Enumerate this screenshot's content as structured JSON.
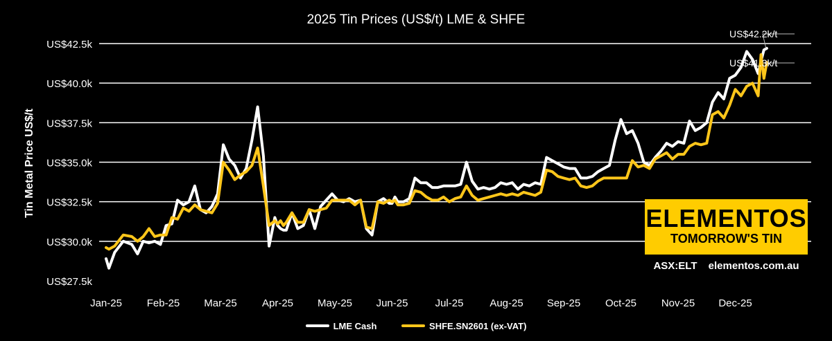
{
  "chart_data": {
    "type": "line",
    "title": "2025 Tin Prices (US$/t) LME & SHFE",
    "xlabel": "",
    "ylabel": "Tin Metal Price US$/t",
    "ylim": [
      27500,
      42500
    ],
    "y_ticks": [
      27500,
      30000,
      32500,
      35000,
      37500,
      40000,
      42500
    ],
    "y_tick_labels": [
      "US$27.5k",
      "US$30.0k",
      "US$32.5k",
      "US$35.0k",
      "US$37.5k",
      "US$40.0k",
      "US$42.5k"
    ],
    "x_tick_labels": [
      "Jan-25",
      "Feb-25",
      "Mar-25",
      "Apr-25",
      "May-25",
      "Jun-25",
      "Jul-25",
      "Aug-25",
      "Sep-25",
      "Oct-25",
      "Nov-25",
      "Dec-25"
    ],
    "xlim": [
      0,
      11.55
    ],
    "grid": true,
    "legend_position": "bottom",
    "series": [
      {
        "name": "LME Cash",
        "color": "#FFFFFF",
        "x": [
          0,
          0.05,
          0.15,
          0.3,
          0.45,
          0.55,
          0.65,
          0.75,
          0.85,
          0.95,
          1.05,
          1.15,
          1.25,
          1.35,
          1.45,
          1.55,
          1.65,
          1.75,
          1.85,
          1.95,
          2.05,
          2.15,
          2.25,
          2.35,
          2.45,
          2.55,
          2.65,
          2.75,
          2.85,
          2.95,
          3.0,
          3.05,
          3.1,
          3.15,
          3.25,
          3.35,
          3.45,
          3.55,
          3.65,
          3.75,
          3.85,
          3.95,
          4.05,
          4.15,
          4.25,
          4.35,
          4.45,
          4.55,
          4.65,
          4.75,
          4.85,
          4.95,
          5.0,
          5.05,
          5.1,
          5.2,
          5.3,
          5.4,
          5.5,
          5.6,
          5.7,
          5.8,
          5.9,
          6.0,
          6.1,
          6.2,
          6.3,
          6.4,
          6.5,
          6.6,
          6.7,
          6.8,
          6.9,
          7.0,
          7.1,
          7.2,
          7.3,
          7.4,
          7.5,
          7.6,
          7.7,
          7.8,
          7.9,
          8.0,
          8.1,
          8.2,
          8.3,
          8.4,
          8.5,
          8.6,
          8.7,
          8.8,
          8.9,
          9.0,
          9.1,
          9.2,
          9.3,
          9.4,
          9.5,
          9.6,
          9.7,
          9.8,
          9.9,
          10.0,
          10.1,
          10.2,
          10.3,
          10.4,
          10.5,
          10.6,
          10.7,
          10.8,
          10.9,
          11.0,
          11.1,
          11.2,
          11.3,
          11.4,
          11.45,
          11.5,
          11.55
        ],
        "values": [
          28900,
          28300,
          29300,
          30000,
          29800,
          29200,
          30000,
          29900,
          30000,
          29800,
          31000,
          31100,
          32600,
          32300,
          32500,
          33500,
          32000,
          31800,
          32200,
          33000,
          36100,
          35200,
          34800,
          34000,
          34600,
          36400,
          38500,
          35400,
          29700,
          31500,
          31000,
          30800,
          30700,
          30700,
          31800,
          30800,
          31000,
          32000,
          30800,
          32200,
          32600,
          33000,
          32600,
          32500,
          32700,
          32500,
          32600,
          30800,
          30400,
          32500,
          32700,
          32400,
          32400,
          32800,
          32500,
          32500,
          32700,
          34000,
          33700,
          33700,
          33400,
          33400,
          33500,
          33500,
          33500,
          33600,
          35000,
          33800,
          33300,
          33400,
          33300,
          33400,
          33700,
          33600,
          33700,
          33300,
          33600,
          33500,
          33700,
          33600,
          35300,
          35100,
          34900,
          34700,
          34600,
          34600,
          34000,
          34000,
          34100,
          34400,
          34600,
          34800,
          36400,
          37700,
          36800,
          37000,
          36200,
          35000,
          34800,
          35300,
          35700,
          36200,
          36000,
          36300,
          36200,
          37600,
          37000,
          37200,
          37500,
          38800,
          39400,
          39000,
          40300,
          40500,
          41000,
          42000,
          41500,
          40600,
          41400,
          42100,
          42200
        ]
      },
      {
        "name": "SHFE.SN2601 (ex-VAT)",
        "color": "#FFC61A",
        "x": [
          0,
          0.05,
          0.15,
          0.3,
          0.45,
          0.55,
          0.65,
          0.75,
          0.85,
          0.95,
          1.05,
          1.15,
          1.25,
          1.35,
          1.45,
          1.55,
          1.65,
          1.75,
          1.85,
          1.95,
          2.05,
          2.15,
          2.25,
          2.35,
          2.45,
          2.55,
          2.65,
          2.75,
          2.85,
          2.95,
          3.0,
          3.05,
          3.1,
          3.15,
          3.25,
          3.35,
          3.45,
          3.55,
          3.65,
          3.75,
          3.85,
          3.95,
          4.05,
          4.15,
          4.25,
          4.35,
          4.45,
          4.55,
          4.65,
          4.75,
          4.85,
          4.95,
          5.0,
          5.05,
          5.1,
          5.2,
          5.3,
          5.4,
          5.5,
          5.6,
          5.7,
          5.8,
          5.9,
          6.0,
          6.1,
          6.2,
          6.3,
          6.4,
          6.5,
          6.6,
          6.7,
          6.8,
          6.9,
          7.0,
          7.1,
          7.2,
          7.3,
          7.4,
          7.5,
          7.6,
          7.7,
          7.8,
          7.9,
          8.0,
          8.1,
          8.2,
          8.3,
          8.4,
          8.5,
          8.6,
          8.7,
          8.8,
          8.9,
          9.0,
          9.1,
          9.2,
          9.3,
          9.4,
          9.5,
          9.6,
          9.7,
          9.8,
          9.9,
          10.0,
          10.1,
          10.2,
          10.3,
          10.4,
          10.5,
          10.6,
          10.7,
          10.8,
          10.9,
          11.0,
          11.1,
          11.2,
          11.3,
          11.4,
          11.45,
          11.5,
          11.55
        ],
        "values": [
          29600,
          29500,
          29700,
          30400,
          30300,
          30000,
          30300,
          30800,
          30300,
          30400,
          30400,
          31500,
          31400,
          32100,
          31900,
          32300,
          32000,
          31900,
          31800,
          32400,
          35000,
          34500,
          33900,
          34200,
          34400,
          34800,
          35900,
          33500,
          31000,
          31300,
          31100,
          31300,
          31000,
          31200,
          31800,
          31200,
          31200,
          32000,
          31900,
          32000,
          32100,
          32600,
          32600,
          32600,
          32600,
          32300,
          32600,
          30900,
          30800,
          32500,
          32400,
          32600,
          32500,
          32600,
          32300,
          32300,
          32400,
          33200,
          33100,
          32800,
          32600,
          32600,
          32800,
          32500,
          32700,
          32800,
          33500,
          32900,
          32600,
          32700,
          32800,
          32900,
          33000,
          32900,
          33000,
          32900,
          33100,
          33000,
          32900,
          33100,
          34500,
          34400,
          34100,
          34000,
          33900,
          34000,
          33500,
          33400,
          33500,
          33800,
          34000,
          34000,
          34000,
          34000,
          34000,
          35100,
          34700,
          34800,
          34600,
          35200,
          35400,
          35600,
          35200,
          35500,
          35500,
          36000,
          36200,
          36100,
          36200,
          38000,
          38200,
          37800,
          38600,
          39600,
          39200,
          39800,
          40000,
          39200,
          41800,
          40300,
          41300
        ]
      }
    ],
    "annotations": [
      {
        "text": "US$42.2k/t",
        "series": "LME Cash",
        "value": 42200
      },
      {
        "text": "US$41.3k/t",
        "series": "SHFE.SN2601 (ex-VAT)",
        "value": 41300
      }
    ]
  },
  "logo": {
    "brand": "ELEMENTOS",
    "tagline": "TOMORROW'S TIN",
    "ticker": "ASX:ELT",
    "website": "elementos.com.au"
  },
  "colors": {
    "background": "#000000",
    "grid": "#FFFFFF",
    "brand_yellow": "#FFCC00"
  }
}
